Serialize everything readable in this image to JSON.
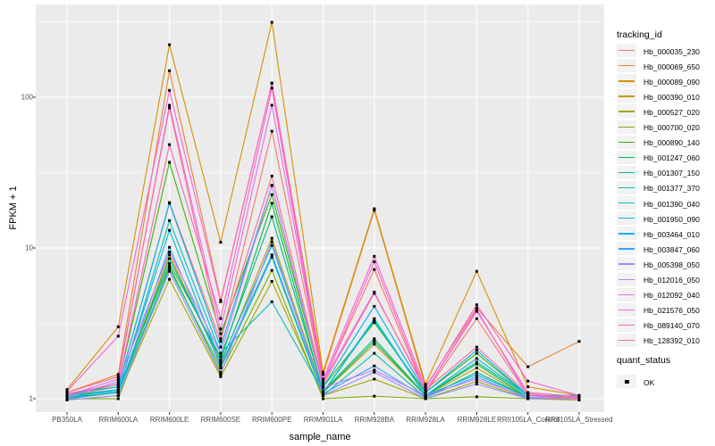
{
  "chart_data": {
    "type": "line",
    "title": "",
    "xlabel": "sample_name",
    "ylabel": "FPKM + 1",
    "y_scale": "log10",
    "y_ticks": [
      1,
      10,
      100
    ],
    "y_minor_ticks": [
      3.162,
      31.62,
      316.2
    ],
    "ylim_px_note": "log scale, decade = 169px",
    "panel_bg": "#EBEBEB",
    "grid_color": "#FFFFFF",
    "point_color": "#000000",
    "legend_position": "right",
    "legend_title": "tracking_id",
    "legend2_title": "quant_status",
    "legend2_items": [
      "OK"
    ],
    "categories": [
      "PB350LA",
      "RRIM600LA",
      "RRIM600LE",
      "RRIM600SE",
      "RRIM600PE",
      "RRIM901LA",
      "RRIM928BA",
      "RRIM928LA",
      "RRIM928LE",
      "RRII105LA_Control",
      "RRII105LA_Stressed"
    ],
    "series": [
      {
        "name": "Hb_000035_230",
        "color": "#F8766D",
        "values": [
          1.05,
          1.2,
          20,
          2.4,
          59.5,
          1.3,
          7.2,
          1.1,
          3.4,
          1.05,
          1.0
        ]
      },
      {
        "name": "Hb_000069_650",
        "color": "#EA8331",
        "values": [
          1.1,
          1.45,
          150,
          4.5,
          124,
          1.45,
          17.8,
          1.2,
          4.0,
          1.63,
          2.4
        ]
      },
      {
        "name": "Hb_000089_090",
        "color": "#D89000",
        "values": [
          1.15,
          3.0,
          223,
          10.9,
          314,
          1.5,
          18.2,
          1.25,
          7.0,
          1.2,
          1.05
        ]
      },
      {
        "name": "Hb_000390_010",
        "color": "#C09B00",
        "values": [
          1.0,
          1.1,
          9.0,
          1.7,
          11.6,
          1.1,
          2.3,
          1.05,
          1.6,
          1.02,
          1.0
        ]
      },
      {
        "name": "Hb_000527_020",
        "color": "#A3A500",
        "values": [
          0.98,
          1.05,
          6.2,
          1.4,
          6.0,
          1.05,
          1.35,
          1.0,
          1.3,
          1.0,
          0.98
        ]
      },
      {
        "name": "Hb_000700_020",
        "color": "#7CAE00",
        "values": [
          1.0,
          1.0,
          7.6,
          1.5,
          7.1,
          1.0,
          1.04,
          1.0,
          1.03,
          1.0,
          1.02
        ]
      },
      {
        "name": "Hb_000890_140",
        "color": "#39B600",
        "values": [
          1.05,
          1.25,
          37,
          2.7,
          22.6,
          1.2,
          3.2,
          1.1,
          2.0,
          1.05,
          1.05
        ]
      },
      {
        "name": "Hb_001247_060",
        "color": "#00BB4E",
        "values": [
          1.02,
          1.1,
          8.5,
          1.8,
          19.8,
          1.1,
          2.4,
          1.05,
          1.7,
          1.02,
          1.0
        ]
      },
      {
        "name": "Hb_001307_150",
        "color": "#00BF7D",
        "values": [
          1.05,
          1.15,
          7.9,
          1.9,
          16.1,
          1.12,
          2.5,
          1.05,
          1.75,
          1.05,
          1.02
        ]
      },
      {
        "name": "Hb_001377_370",
        "color": "#00C1A3",
        "values": [
          1.0,
          1.1,
          7.3,
          1.6,
          8.7,
          1.05,
          2.0,
          1.02,
          1.5,
          1.02,
          1.0
        ]
      },
      {
        "name": "Hb_001390_040",
        "color": "#00BFC4",
        "values": [
          1.05,
          1.12,
          15.2,
          2.0,
          4.4,
          1.1,
          3.4,
          1.05,
          1.45,
          1.02,
          1.0
        ]
      },
      {
        "name": "Hb_001950_090",
        "color": "#00BAE0",
        "values": [
          1.02,
          1.15,
          13.1,
          1.75,
          10.4,
          1.1,
          3.3,
          1.05,
          1.85,
          1.05,
          1.02
        ]
      },
      {
        "name": "Hb_003464_010",
        "color": "#00B0F6",
        "values": [
          1.08,
          1.2,
          19.8,
          2.2,
          26,
          1.2,
          4.1,
          1.1,
          2.1,
          1.05,
          1.05
        ]
      },
      {
        "name": "Hb_003847_060",
        "color": "#35A2FF",
        "values": [
          1.0,
          1.1,
          10.1,
          1.65,
          9.0,
          1.08,
          1.65,
          1.02,
          1.4,
          1.0,
          1.0
        ]
      },
      {
        "name": "Hb_005398_050",
        "color": "#9590FF",
        "values": [
          0.98,
          1.05,
          7.0,
          1.45,
          11.0,
          1.05,
          1.5,
          1.0,
          1.25,
          1.0,
          1.0
        ]
      },
      {
        "name": "Hb_012016_050",
        "color": "#C77CFF",
        "values": [
          1.02,
          1.3,
          9.4,
          2.0,
          26,
          1.18,
          1.55,
          1.05,
          1.35,
          1.02,
          1.0
        ]
      },
      {
        "name": "Hb_012092_040",
        "color": "#E76BF3",
        "values": [
          1.05,
          1.35,
          88.5,
          2.9,
          88.5,
          1.3,
          5.1,
          1.12,
          3.9,
          1.05,
          1.02
        ]
      },
      {
        "name": "Hb_021576_050",
        "color": "#FA62DB",
        "values": [
          1.12,
          2.6,
          111,
          4.4,
          124,
          1.35,
          8.8,
          1.18,
          4.2,
          1.31,
          1.05
        ]
      },
      {
        "name": "Hb_089140_070",
        "color": "#FF62BC",
        "values": [
          1.08,
          1.25,
          48.5,
          3.4,
          115,
          1.28,
          8.1,
          1.12,
          3.8,
          1.1,
          1.03
        ]
      },
      {
        "name": "Hb_128392_010",
        "color": "#FF6A98",
        "values": [
          1.1,
          1.4,
          85,
          2.5,
          30,
          1.25,
          5.0,
          1.15,
          2.2,
          1.08,
          1.0
        ]
      }
    ]
  }
}
